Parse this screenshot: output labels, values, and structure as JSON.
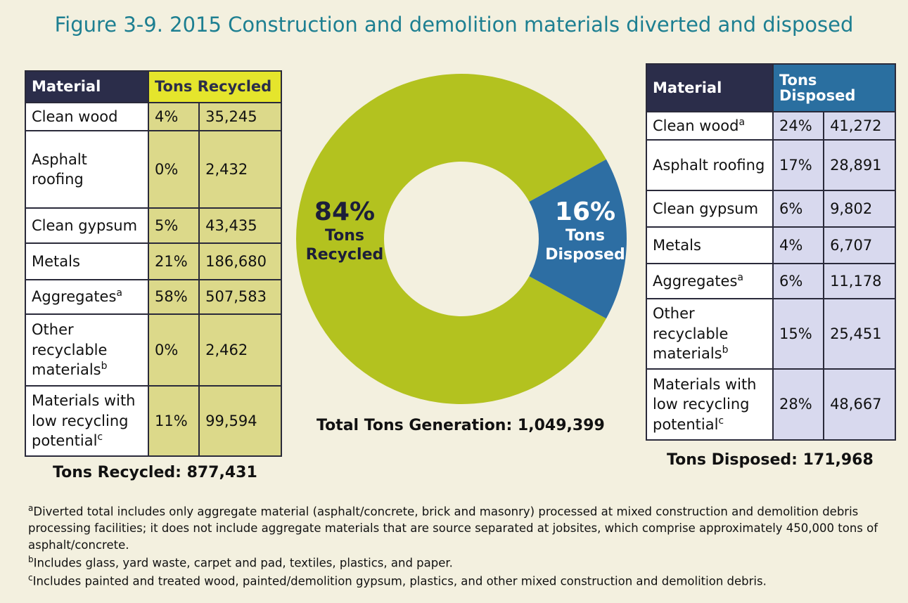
{
  "title": "Figure 3-9. 2015 Construction and demolition materials diverted and disposed",
  "recycled_table": {
    "headers": [
      "Material",
      "Tons Recycled"
    ],
    "rows": [
      {
        "material": "Clean wood",
        "percent": "4%",
        "tons": "35,245"
      },
      {
        "material": "Asphalt roofing",
        "percent": "0%",
        "tons": "2,432"
      },
      {
        "material": "Clean gypsum",
        "percent": "5%",
        "tons": "43,435"
      },
      {
        "material": "Metals",
        "percent": "21%",
        "tons": "186,680"
      },
      {
        "material": "Aggregates",
        "note": "a",
        "percent": "58%",
        "tons": "507,583"
      },
      {
        "material": "Other recyclable materials",
        "note": "b",
        "percent": "0%",
        "tons": "2,462"
      },
      {
        "material": "Materials with low recycling potential",
        "note": "c",
        "percent": "11%",
        "tons": "99,594"
      }
    ],
    "total": "Tons Recycled: 877,431"
  },
  "disposed_table": {
    "headers": [
      "Material",
      "Tons Disposed"
    ],
    "rows": [
      {
        "material": "Clean wood",
        "note": "a",
        "percent": "24%",
        "tons": "41,272"
      },
      {
        "material": "Asphalt roofing",
        "percent": "17%",
        "tons": "28,891"
      },
      {
        "material": "Clean gypsum",
        "percent": "6%",
        "tons": "9,802"
      },
      {
        "material": "Metals",
        "percent": "4%",
        "tons": "6,707"
      },
      {
        "material": "Aggregates",
        "note": "a",
        "percent": "6%",
        "tons": "11,178"
      },
      {
        "material": "Other recyclable materials",
        "note": "b",
        "percent": "15%",
        "tons": "25,451"
      },
      {
        "material": "Materials with low recycling potential",
        "note": "c",
        "percent": "28%",
        "tons": "48,667"
      }
    ],
    "total": "Tons Disposed: 171,968"
  },
  "chart_data": {
    "type": "donut",
    "categories": [
      "Tons Recycled",
      "Tons Disposed"
    ],
    "values": [
      84,
      16
    ],
    "value_labels": [
      "84%",
      "16%"
    ],
    "colors": [
      "#b3c21f",
      "#2d6ea3"
    ],
    "annotation": "Total Tons Generation: 1,049,399"
  },
  "footnotes": [
    {
      "mark": "a",
      "text": "Diverted total includes only aggregate material (asphalt/concrete, brick and masonry) processed at mixed construction and demolition debris processing facilities; it does not include aggregate materials that are source separated at jobsites, which comprise approximately 450,000 tons of asphalt/concrete."
    },
    {
      "mark": "b",
      "text": "Includes glass, yard waste, carpet and pad, textiles, plastics, and paper."
    },
    {
      "mark": "c",
      "text": "Includes painted and treated wood, painted/demolition gypsum, plastics, and other mixed construction and demolition debris."
    }
  ]
}
